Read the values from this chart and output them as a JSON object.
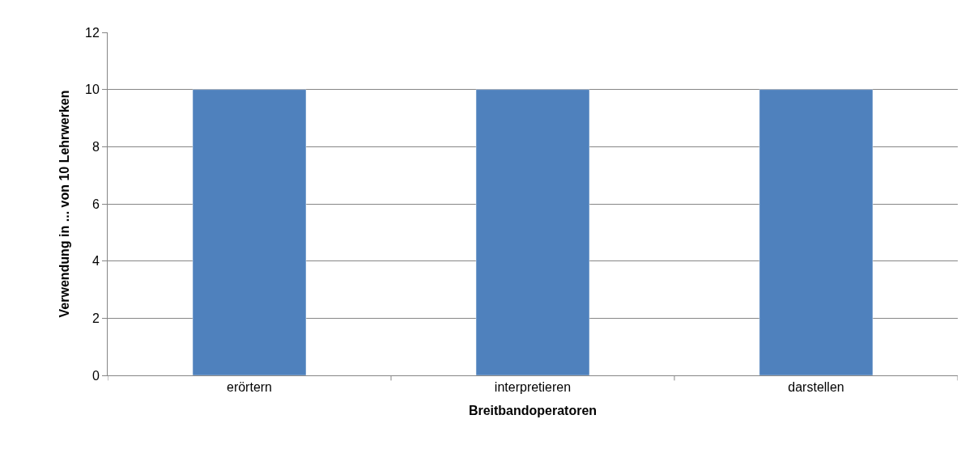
{
  "chart_data": {
    "type": "bar",
    "xlabel": "Breitbandoperatoren",
    "ylabel": "Verwendung in ... von 10 Lehrwerken",
    "categories": [
      "erörtern",
      "interpretieren",
      "darstellen"
    ],
    "values": [
      10,
      10,
      10
    ],
    "color": "#4f81bd",
    "ylim": [
      0,
      12
    ],
    "yticks": [
      0,
      2,
      4,
      6,
      8,
      10,
      12
    ],
    "grid": "y"
  }
}
